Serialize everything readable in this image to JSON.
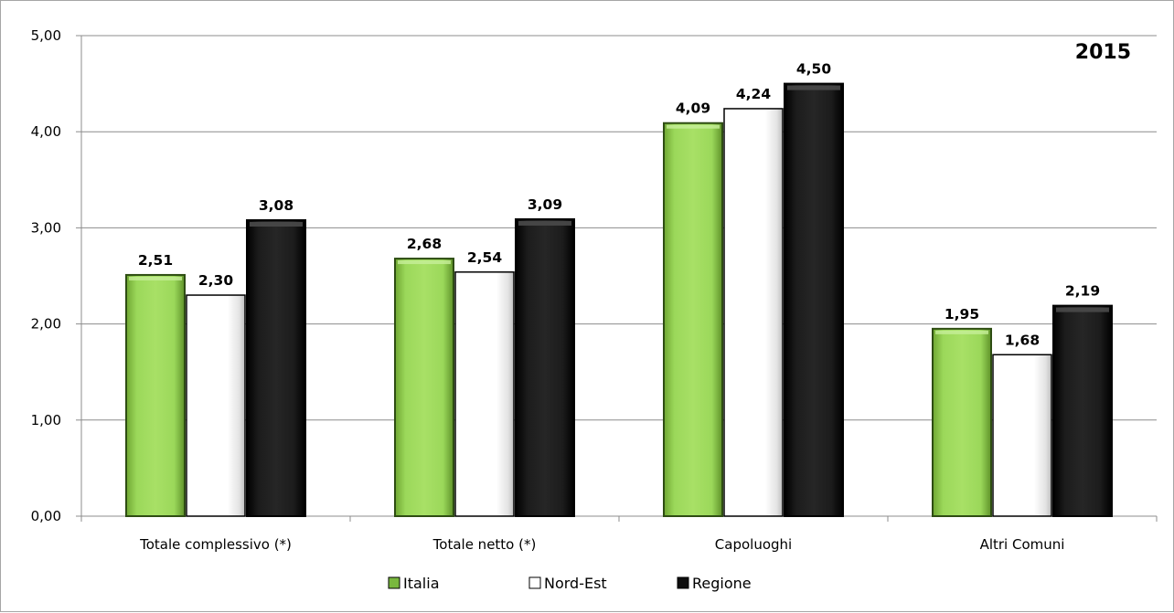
{
  "chart_data": {
    "type": "bar",
    "title": "2015",
    "categories": [
      "Totale complessivo (*)",
      "Totale netto (*)",
      "Capoluoghi",
      "Altri Comuni"
    ],
    "series": [
      {
        "name": "Italia",
        "values": [
          2.51,
          2.68,
          4.09,
          1.95
        ],
        "labels": [
          "2,51",
          "2,68",
          "4,09",
          "1,95"
        ],
        "color": "#92d050"
      },
      {
        "name": "Nord-Est",
        "values": [
          2.3,
          2.54,
          4.24,
          1.68
        ],
        "labels": [
          "2,30",
          "2,54",
          "4,24",
          "1,68"
        ],
        "color": "#ffffff"
      },
      {
        "name": "Regione",
        "values": [
          3.08,
          3.09,
          4.5,
          2.19
        ],
        "labels": [
          "3,08",
          "3,09",
          "4,50",
          "2,19"
        ],
        "color": "#0d0d0d"
      }
    ],
    "ylim": [
      0,
      5
    ],
    "yticks": [
      0,
      1,
      2,
      3,
      4,
      5
    ],
    "ytick_labels": [
      "0,00",
      "1,00",
      "2,00",
      "3,00",
      "4,00",
      "5,00"
    ],
    "grid": true,
    "legend": "bottom"
  }
}
